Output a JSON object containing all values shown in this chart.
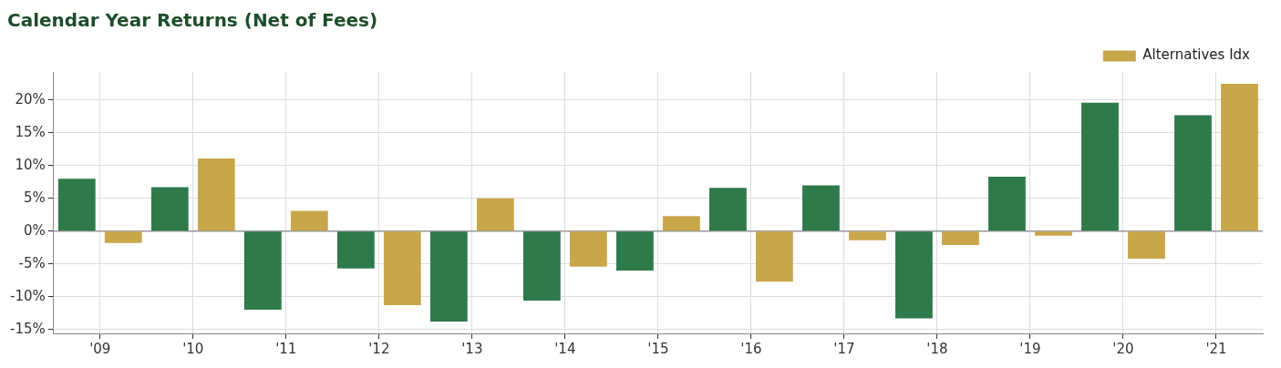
{
  "chart_data": {
    "type": "bar",
    "title": "Calendar Year Returns (Net of Fees)",
    "categories": [
      "'09",
      "'10",
      "'11",
      "'12",
      "'13",
      "'14",
      "'15",
      "'16",
      "'17",
      "'18",
      "'19",
      "'20",
      "'21"
    ],
    "series": [
      {
        "color": "#2e7a4b",
        "values": [
          8.0,
          6.7,
          -12.0,
          -5.7,
          -13.8,
          -10.6,
          -6.0,
          6.6,
          7.0,
          -13.3,
          8.3,
          19.6,
          17.7
        ]
      },
      {
        "name": "Alternatives Idx",
        "color": "#c8a74b",
        "values": [
          -1.8,
          11.1,
          3.1,
          -11.3,
          5.0,
          -5.4,
          2.3,
          -7.7,
          -1.4,
          -2.1,
          -0.7,
          -4.2,
          22.5
        ]
      }
    ],
    "ylim": [
      -15.6,
      24.3
    ],
    "yticks": [
      {
        "value": -15,
        "label": "-15%"
      },
      {
        "value": -10,
        "label": "-10%"
      },
      {
        "value": -5,
        "label": "-5%"
      },
      {
        "value": 0,
        "label": "0%"
      },
      {
        "value": 5,
        "label": "5%"
      },
      {
        "value": 10,
        "label": "10%"
      },
      {
        "value": 15,
        "label": "15%"
      },
      {
        "value": 20,
        "label": "20%"
      }
    ],
    "ref_lines": [
      {
        "axis": "y",
        "value": 0,
        "color": "#999999"
      }
    ],
    "grid": true,
    "legend": "top right"
  }
}
